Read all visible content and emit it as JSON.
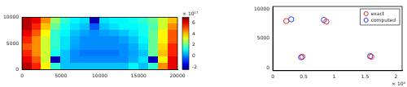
{
  "chart_data": [
    {
      "type": "heatmap",
      "x": [
        625,
        1875,
        3125,
        4375,
        5625,
        6875,
        8125,
        9375,
        10625,
        11875,
        13125,
        14375,
        15625,
        16875,
        18125,
        19375
      ],
      "y": [
        9375,
        8125,
        6875,
        5625,
        4375,
        3125,
        1875,
        625
      ],
      "z": [
        [
          6.5,
          6,
          4.5,
          2.5,
          1.5,
          1,
          0.8,
          -2,
          0.8,
          1,
          1,
          1.2,
          1.5,
          2,
          3,
          4
        ],
        [
          6.5,
          5.5,
          4,
          2,
          1.2,
          0.8,
          0.5,
          -0.5,
          0.5,
          0.8,
          1,
          1,
          1.2,
          1.8,
          3,
          4.5
        ],
        [
          6,
          5,
          3.5,
          1.5,
          1,
          0.5,
          0.2,
          0,
          0.2,
          0.3,
          0.5,
          0.8,
          1.2,
          2,
          3.5,
          5
        ],
        [
          5.5,
          4.5,
          3,
          1.5,
          0.8,
          0.3,
          0,
          0,
          0,
          0,
          0.2,
          0.5,
          1,
          2,
          3.5,
          5
        ],
        [
          5,
          4.5,
          3,
          1.5,
          0.8,
          0.2,
          0,
          0,
          0,
          0,
          0,
          0.3,
          0.8,
          2,
          3.8,
          5.5
        ],
        [
          5.5,
          4.5,
          3,
          1.2,
          0.5,
          0,
          -0.2,
          -0.2,
          -0.2,
          -0.2,
          0,
          0.2,
          0.5,
          2,
          4,
          5.5
        ],
        [
          6,
          5,
          3,
          -2,
          0.5,
          0,
          0,
          0,
          0,
          0,
          0,
          0.3,
          0.8,
          -2,
          3.5,
          6
        ],
        [
          6.5,
          5.5,
          3.5,
          1.5,
          0.5,
          0.5,
          0.5,
          0.5,
          0.5,
          0.5,
          0.5,
          1,
          0.5,
          1.5,
          4.5,
          6
        ]
      ],
      "xlim": [
        0,
        20000
      ],
      "ylim": [
        0,
        10000
      ],
      "xticks": [
        0,
        5000,
        10000,
        15000,
        20000
      ],
      "yticks": [
        0,
        5000,
        10000
      ],
      "colorbar": {
        "range": [
          -2.5,
          7
        ],
        "ticks": [
          -2,
          0,
          2,
          4,
          6
        ],
        "label": "× 10¹⁷"
      }
    },
    {
      "type": "scatter",
      "series": [
        {
          "name": "exact",
          "color": "#e8262a",
          "marker": "circle",
          "x": [
            0.22,
            0.87,
            0.48,
            1.6
          ],
          "values": [
            8000,
            7900,
            1900,
            1900
          ]
        },
        {
          "name": "computed",
          "color": "#2a3ae8",
          "marker": "circle",
          "x": [
            0.3,
            0.83,
            0.46,
            1.58
          ],
          "values": [
            8300,
            8200,
            1800,
            2000
          ]
        }
      ],
      "xlim": [
        0,
        2.1
      ],
      "ylim": [
        -500,
        10500
      ],
      "xticks": [
        0,
        0.5,
        1,
        1.5,
        2
      ],
      "yticks": [
        0,
        5000,
        10000
      ],
      "x_exponent_label": "× 10⁴",
      "legend": "top-right"
    }
  ]
}
